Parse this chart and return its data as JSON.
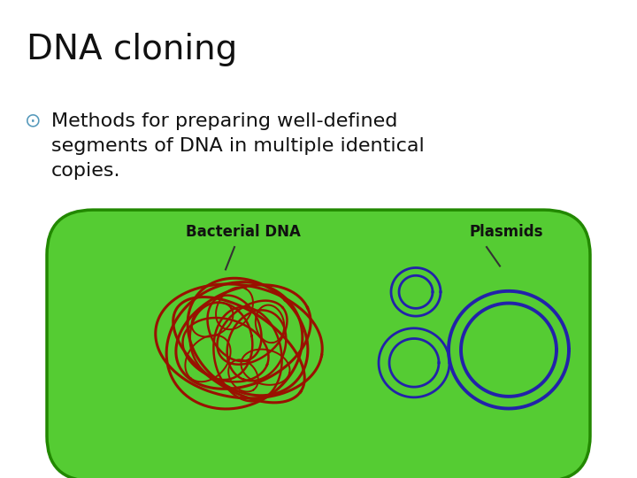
{
  "title": "DNA cloning",
  "bullet_text": "Methods for preparing well-defined\nsegments of DNA in multiple identical\ncopies.",
  "bullet_symbol": "⊙",
  "label_bacterial": "Bacterial DNA",
  "label_plasmids": "Plasmids",
  "bg_color": "#ffffff",
  "cell_fill": "#55cc33",
  "cell_edge": "#228800",
  "dna_color": "#991100",
  "plasmid_color": "#2222aa",
  "title_fontsize": 28,
  "bullet_fontsize": 16,
  "label_fontsize": 12
}
